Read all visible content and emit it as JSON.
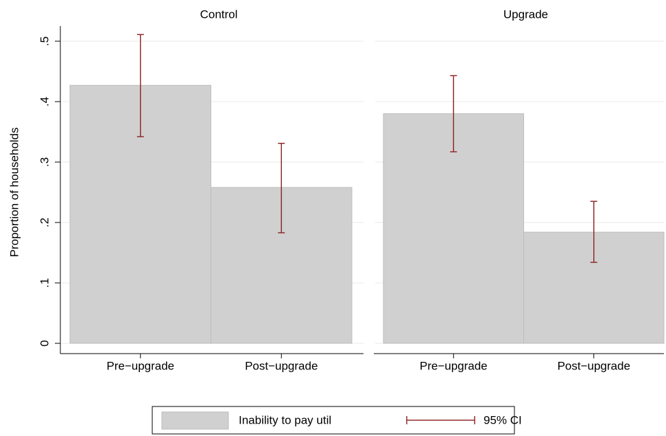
{
  "chart_data": [
    {
      "type": "bar",
      "title": "Control",
      "y_label": "Proportion of households",
      "categories": [
        "Pre−upgrade",
        "Post−upgrade"
      ],
      "series": [
        {
          "name": "Inability to pay util",
          "color": "#d0d0d0",
          "values": [
            0.427,
            0.258
          ],
          "ci_low": [
            0.342,
            0.183
          ],
          "ci_high": [
            0.511,
            0.331
          ]
        }
      ],
      "ci_name": "95% CI",
      "ci_color": "#902a2a",
      "ylim": [
        -0.017,
        0.525
      ],
      "yticks": [
        0,
        {
          "value": 0.1,
          "label": ".1"
        },
        {
          "value": 0.2,
          "label": ".2"
        },
        {
          "value": 0.3,
          "label": ".3"
        },
        {
          "value": 0.4,
          "label": ".4"
        },
        {
          "value": 0.5,
          "label": ".5"
        }
      ],
      "grid": true
    },
    {
      "type": "bar",
      "title": "Upgrade",
      "categories": [
        "Pre−upgrade",
        "Post−upgrade"
      ],
      "series": [
        {
          "color": "#d0d0d0",
          "values": [
            0.38,
            0.184
          ],
          "ci_low": [
            0.317,
            0.134
          ],
          "ci_high": [
            0.443,
            0.235
          ]
        }
      ],
      "ci_color": "#902a2a",
      "ylim": [
        -0.017,
        0.525
      ],
      "yticks": [
        0,
        0.1,
        0.2,
        0.3,
        0.4,
        0.5
      ],
      "grid": true
    }
  ]
}
